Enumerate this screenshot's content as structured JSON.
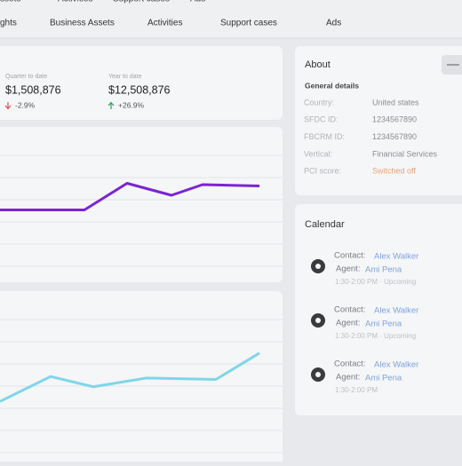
{
  "nav_top": [
    "ssets",
    "Activities",
    "Support cases",
    "Ads"
  ],
  "nav": [
    "ghts",
    "Business Assets",
    "Activities",
    "Support cases",
    "Ads"
  ],
  "stats": [
    {
      "label": "Quarter to date",
      "value": "$1,508,876",
      "change": "-2.9%",
      "direction": "down"
    },
    {
      "label": "Year to date",
      "value": "$12,508,876",
      "change": "+26.9%",
      "direction": "up"
    }
  ],
  "charts": [
    {
      "type": "line",
      "color": "#7b24d4",
      "x": [
        0,
        95,
        143,
        193,
        228,
        292
      ],
      "xlim": [
        0,
        292
      ],
      "values": [
        49,
        49,
        69,
        60,
        68,
        67
      ],
      "ylim": [
        0,
        100
      ]
    },
    {
      "type": "line",
      "color": "#7fd6e8",
      "x": [
        0,
        57,
        105,
        165,
        243,
        292
      ],
      "xlim": [
        0,
        292
      ],
      "values": [
        35,
        52,
        45,
        51,
        50,
        68
      ],
      "ylim": [
        0,
        100
      ]
    }
  ],
  "about": {
    "title": "About",
    "section": "General details",
    "fields": [
      {
        "label": "Country:",
        "value": "United states"
      },
      {
        "label": "SFDC ID:",
        "value": "1234567890"
      },
      {
        "label": "FBCRM ID:",
        "value": "1234567890"
      },
      {
        "label": "Vertical:",
        "value": "Financial Services"
      },
      {
        "label": "PCI score:",
        "value": "Switched off"
      }
    ]
  },
  "calendar": {
    "title": "Calendar",
    "events": [
      {
        "contact_label": "Contact:",
        "contact": "Alex Walker",
        "agent_label": "Agent:",
        "agent": "Ami Pena",
        "time": "1:30-2:00 PM · Upcoming"
      },
      {
        "contact_label": "Contact:",
        "contact": "Alex Walker",
        "agent_label": "Agent:",
        "agent": "Ami Pena",
        "time": "1:30-2:00 PM · Upcoming"
      },
      {
        "contact_label": "Contact:",
        "contact": "Alex Walker",
        "agent_label": "Agent:",
        "agent": "Ami Pena",
        "time": "1:30-2:00 PM"
      }
    ]
  }
}
